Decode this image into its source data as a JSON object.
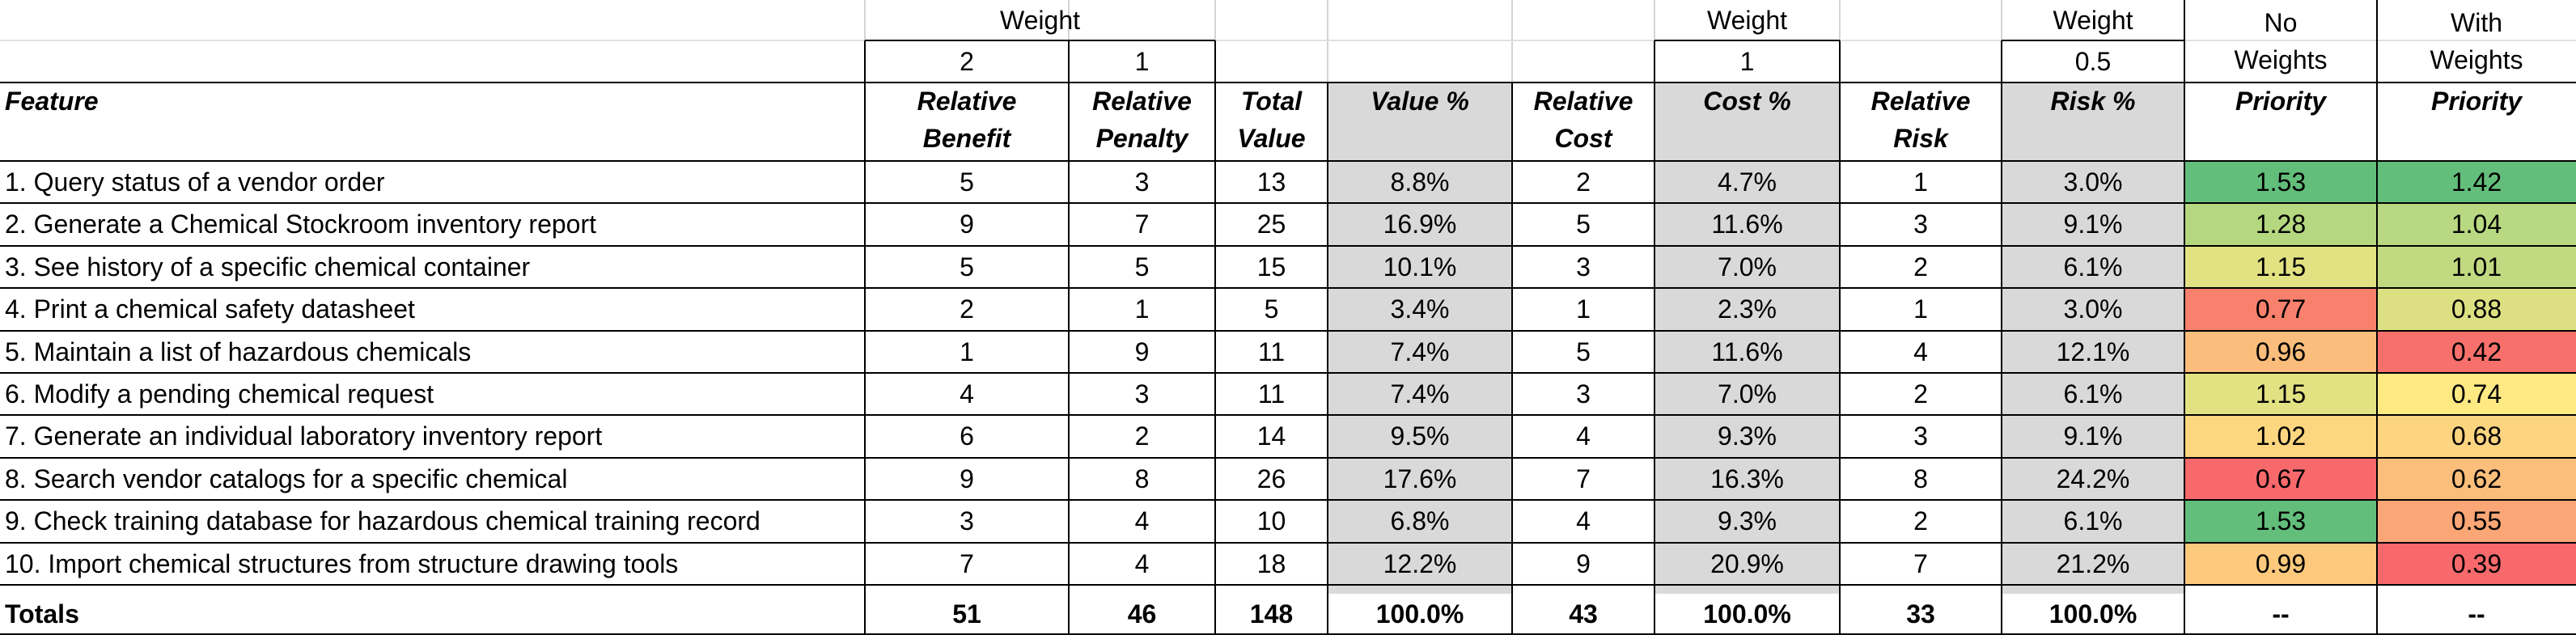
{
  "weights": {
    "label": "Weight",
    "benefit": "2",
    "penalty": "1",
    "cost": "1",
    "risk": "0.5"
  },
  "headers": {
    "feature": "Feature",
    "benefit": [
      "Relative",
      "Benefit"
    ],
    "penalty": [
      "Relative",
      "Penalty"
    ],
    "total_value": [
      "Total",
      "Value"
    ],
    "value_pct": "Value %",
    "cost": [
      "Relative",
      "Cost"
    ],
    "cost_pct": "Cost %",
    "risk": [
      "Relative",
      "Risk"
    ],
    "risk_pct": "Risk %",
    "priority_no": {
      "top": [
        "No",
        "Weights"
      ],
      "label": "Priority"
    },
    "priority_with": {
      "top": [
        "With",
        "Weights"
      ],
      "label": "Priority"
    }
  },
  "rows": [
    {
      "feature": "1. Query status of a vendor order",
      "benefit": "5",
      "penalty": "3",
      "total": "13",
      "value_pct": "8.8%",
      "cost": "2",
      "cost_pct": "4.7%",
      "risk": "1",
      "risk_pct": "3.0%",
      "prio_no": "1.53",
      "prio_no_color": "#63be7b",
      "prio_w": "1.42",
      "prio_w_color": "#63be7b"
    },
    {
      "feature": "2. Generate a Chemical Stockroom inventory report",
      "benefit": "9",
      "penalty": "7",
      "total": "25",
      "value_pct": "16.9%",
      "cost": "5",
      "cost_pct": "11.6%",
      "risk": "3",
      "risk_pct": "9.1%",
      "prio_no": "1.28",
      "prio_no_color": "#b5d780",
      "prio_w": "1.04",
      "prio_w_color": "#b8d881"
    },
    {
      "feature": "3. See history of a specific chemical container",
      "benefit": "5",
      "penalty": "5",
      "total": "15",
      "value_pct": "10.1%",
      "cost": "3",
      "cost_pct": "7.0%",
      "risk": "2",
      "risk_pct": "6.1%",
      "prio_no": "1.15",
      "prio_no_color": "#e3e283",
      "prio_w": "1.01",
      "prio_w_color": "#c1da81"
    },
    {
      "feature": "4. Print a chemical safety datasheet",
      "benefit": "2",
      "penalty": "1",
      "total": "5",
      "value_pct": "3.4%",
      "cost": "1",
      "cost_pct": "2.3%",
      "risk": "1",
      "risk_pct": "3.0%",
      "prio_no": "0.77",
      "prio_no_color": "#f8816d",
      "prio_w": "0.88",
      "prio_w_color": "#dde082"
    },
    {
      "feature": "5. Maintain a list of hazardous chemicals",
      "benefit": "1",
      "penalty": "9",
      "total": "11",
      "value_pct": "7.4%",
      "cost": "5",
      "cost_pct": "11.6%",
      "risk": "4",
      "risk_pct": "12.1%",
      "prio_no": "0.96",
      "prio_no_color": "#fbbd7b",
      "prio_w": "0.42",
      "prio_w_color": "#f8706b"
    },
    {
      "feature": "6. Modify a pending chemical request",
      "benefit": "4",
      "penalty": "3",
      "total": "11",
      "value_pct": "7.4%",
      "cost": "3",
      "cost_pct": "7.0%",
      "risk": "2",
      "risk_pct": "6.1%",
      "prio_no": "1.15",
      "prio_no_color": "#e3e283",
      "prio_w": "0.74",
      "prio_w_color": "#fee983"
    },
    {
      "feature": "7. Generate an individual laboratory inventory report",
      "benefit": "6",
      "penalty": "2",
      "total": "14",
      "value_pct": "9.5%",
      "cost": "4",
      "cost_pct": "9.3%",
      "risk": "3",
      "risk_pct": "9.1%",
      "prio_no": "1.02",
      "prio_no_color": "#fdd680",
      "prio_w": "0.68",
      "prio_w_color": "#fdd480"
    },
    {
      "feature": "8. Search vendor catalogs for a specific chemical",
      "benefit": "9",
      "penalty": "8",
      "total": "26",
      "value_pct": "17.6%",
      "cost": "7",
      "cost_pct": "16.3%",
      "risk": "8",
      "risk_pct": "24.2%",
      "prio_no": "0.67",
      "prio_no_color": "#f8696b",
      "prio_w": "0.62",
      "prio_w_color": "#fcbf7b"
    },
    {
      "feature": "9. Check training database for hazardous chemical training record",
      "benefit": "3",
      "penalty": "4",
      "total": "10",
      "value_pct": "6.8%",
      "cost": "4",
      "cost_pct": "9.3%",
      "risk": "2",
      "risk_pct": "6.1%",
      "prio_no": "1.53",
      "prio_no_color": "#63be7b",
      "prio_w": "0.55",
      "prio_w_color": "#faa676"
    },
    {
      "feature": "10. Import chemical structures from structure drawing tools",
      "benefit": "7",
      "penalty": "4",
      "total": "18",
      "value_pct": "12.2%",
      "cost": "9",
      "cost_pct": "20.9%",
      "risk": "7",
      "risk_pct": "21.2%",
      "prio_no": "0.99",
      "prio_no_color": "#fcc97d",
      "prio_w": "0.39",
      "prio_w_color": "#f8696b"
    }
  ],
  "totals": {
    "label": "Totals",
    "benefit": "51",
    "penalty": "46",
    "total": "148",
    "value_pct": "100.0%",
    "cost": "43",
    "cost_pct": "100.0%",
    "risk": "33",
    "risk_pct": "100.0%",
    "prio_no": "--",
    "prio_w": "--"
  }
}
